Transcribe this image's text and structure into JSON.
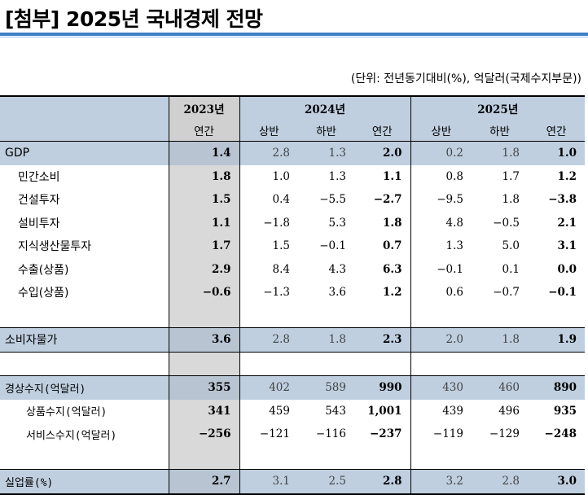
{
  "title": "[첨부] 2025년 국내경제 전망",
  "unit_note": "(단위: 전년동기대비(%), 억달러(국제수지부문))",
  "header": {
    "years": [
      "2023년",
      "2024년",
      "2025년"
    ],
    "periods": [
      "연간",
      "상반",
      "하반",
      "연간",
      "상반",
      "하반",
      "연간"
    ]
  },
  "rows": [
    {
      "label": "GDP",
      "values": [
        "1.4",
        "2.8",
        "1.3",
        "2.0",
        "0.2",
        "1.8",
        "1.0"
      ]
    },
    {
      "label": "민간소비",
      "values": [
        "1.8",
        "1.0",
        "1.3",
        "1.1",
        "0.8",
        "1.7",
        "1.2"
      ]
    },
    {
      "label": "건설투자",
      "values": [
        "1.5",
        "0.4",
        "−5.5",
        "−2.7",
        "−9.5",
        "1.8",
        "−3.8"
      ]
    },
    {
      "label": "설비투자",
      "values": [
        "1.1",
        "−1.8",
        "5.3",
        "1.8",
        "4.8",
        "−0.5",
        "2.1"
      ]
    },
    {
      "label": "지식생산물투자",
      "values": [
        "1.7",
        "1.5",
        "−0.1",
        "0.7",
        "1.3",
        "5.0",
        "3.1"
      ]
    },
    {
      "label": "수출(상품)",
      "values": [
        "2.9",
        "8.4",
        "4.3",
        "6.3",
        "−0.1",
        "0.1",
        "0.0"
      ]
    },
    {
      "label": "수입(상품)",
      "values": [
        "−0.6",
        "−1.3",
        "3.6",
        "1.2",
        "0.6",
        "−0.7",
        "−0.1"
      ]
    },
    {
      "label": "소비자물가",
      "values": [
        "3.6",
        "2.8",
        "1.8",
        "2.3",
        "2.0",
        "1.8",
        "1.9"
      ]
    },
    {
      "label": "경상수지(억달러)",
      "values": [
        "355",
        "402",
        "589",
        "990",
        "430",
        "460",
        "890"
      ]
    },
    {
      "label": "상품수지(억달러)",
      "values": [
        "341",
        "459",
        "543",
        "1,001",
        "439",
        "496",
        "935"
      ]
    },
    {
      "label": "서비스수지(억달러)",
      "values": [
        "−256",
        "−121",
        "−116",
        "−237",
        "−119",
        "−129",
        "−248"
      ]
    },
    {
      "label": "실업률(%)",
      "values": [
        "2.7",
        "3.1",
        "2.5",
        "2.8",
        "3.2",
        "2.8",
        "3.0"
      ]
    }
  ]
}
